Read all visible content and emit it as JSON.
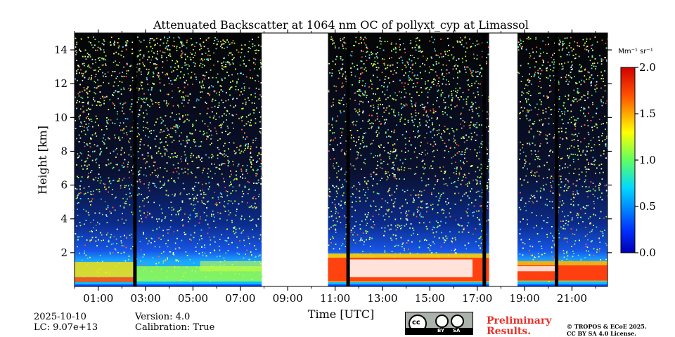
{
  "chart_data": {
    "type": "heatmap",
    "title": "Attenuated Backscatter at 1064 nm OC of pollyxt_cyp at Limassol",
    "xlabel": "Time [UTC]",
    "ylabel": "Height [km]",
    "x_tick_labels": [
      "01:00",
      "03:00",
      "05:00",
      "07:00",
      "09:00",
      "11:00",
      "13:00",
      "15:00",
      "17:00",
      "19:00",
      "21:00"
    ],
    "x_tick_hours": [
      1,
      3,
      5,
      7,
      9,
      11,
      13,
      15,
      17,
      19,
      21
    ],
    "xlim_hours": [
      0,
      22.5
    ],
    "y_ticks": [
      2,
      4,
      6,
      8,
      10,
      12,
      14
    ],
    "y_tick_labels": [
      "2",
      "4",
      "6",
      "8",
      "10",
      "12",
      "14"
    ],
    "ylim": [
      0,
      15
    ],
    "data_segments_hours": [
      [
        0.0,
        7.9
      ],
      [
        10.7,
        17.5
      ],
      [
        18.7,
        22.5
      ]
    ],
    "no_data_gaps_hours": [
      [
        7.9,
        10.7
      ],
      [
        17.5,
        18.7
      ]
    ],
    "dark_profiles_hours": [
      2.55,
      11.55,
      17.3,
      20.35
    ],
    "colorbar": {
      "unit": "Mm⁻¹ sr⁻¹",
      "min": 0.0,
      "max": 2.0,
      "ticks": [
        0.0,
        0.5,
        1.0,
        1.5,
        2.0
      ],
      "tick_labels": [
        "0.0",
        "0.5",
        "1.0",
        "1.5",
        "2.0"
      ],
      "colormap": "jet"
    }
  },
  "footer": {
    "date": "2025-10-10",
    "lc": "LC: 9.07e+13",
    "version": "Version: 4.0",
    "calibration": "Calibration: True",
    "preliminary_line1": "Preliminary",
    "preliminary_line2": "Results.",
    "copyright_line1": "© TROPOS & ECoE 2025.",
    "copyright_line2": "CC BY SA 4.0 License.",
    "license_badge": "cc-by-sa-icon",
    "license_by": "BY",
    "license_sa": "SA"
  },
  "colors": {
    "gap": "#ffffff",
    "accent_preliminary": "#e8312a"
  }
}
